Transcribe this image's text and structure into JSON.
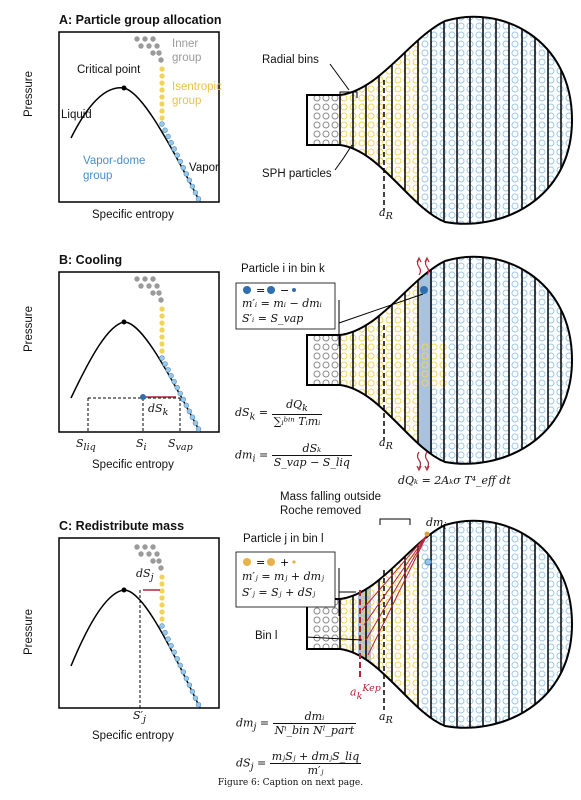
{
  "panels": {
    "a": {
      "title": "A: Particle group allocation",
      "ylabel": "Pressure",
      "xlabel": "Specific entropy",
      "critical_point": "Critical point",
      "liquid": "Liquid",
      "inner_group": [
        "Inner",
        "group"
      ],
      "isentropic_group": [
        "Isentropic",
        "group"
      ],
      "vapordome_group": [
        "Vapor-dome",
        "group"
      ],
      "vapor": "Vapor",
      "radial_bins": "Radial bins",
      "sph_particles": "SPH particles",
      "a_r": "a",
      "a_r_sub": "R"
    },
    "b": {
      "title": "B: Cooling",
      "ylabel": "Pressure",
      "xlabel": "Specific entropy",
      "dSk": "dS",
      "dSk_sub": "k",
      "s_liq": "S",
      "s_liq_sub": "liq",
      "s_i": "S",
      "s_i_sub": "i",
      "s_vap": "S",
      "s_vap_sub": "vap",
      "box_title": "Particle i in bin k",
      "eq1": "m′ᵢ = mᵢ − dmᵢ",
      "eq2": "S′ᵢ = S_vap",
      "dSk_lhs": "dS",
      "dSk_lhs_sub": "k",
      "dSk_num": "dQ",
      "dSk_num_sub": "k",
      "dSk_den": "∑ᵢᵇⁱⁿ Tᵢmᵢ",
      "dmi_lhs": "dm",
      "dmi_lhs_sub": "i",
      "dmi_num": "dSₖ",
      "dmi_den": "S_vap − S_liq",
      "a_r": "a",
      "a_r_sub": "R",
      "dQk": "dQₖ = 2Aₖσ T⁴_eff dt"
    },
    "c": {
      "title": "C: Redistribute mass",
      "ylabel": "Pressure",
      "xlabel": "Specific entropy",
      "dSj": "dS",
      "dSj_sub": "j",
      "sj_prime": "S′",
      "sj_prime_sub": "j",
      "mass_falling": [
        "Mass falling outside",
        "Roche removed"
      ],
      "dmi": "dm",
      "dmi_sub": "i",
      "box_title": "Particle j in bin l",
      "eq1": "m′ⱼ = mⱼ + dmⱼ",
      "eq2": "S′ⱼ = Sⱼ + dSⱼ",
      "bin_l": "Bin l",
      "a_kep": "a",
      "a_kep_sub": "k",
      "a_kep_sup": "Kep",
      "a_r": "a",
      "a_r_sub": "R",
      "dmj_lhs": "dm",
      "dmj_lhs_sub": "j",
      "dmj_num": "dmᵢ",
      "dmj_den": "Nⁱ_bin Nˡ_part",
      "dSj_lhs": "dS",
      "dSj_lhs_sub": "j",
      "dSj_num": "mⱼSⱼ + dmⱼS_liq",
      "dSj_den": "m′ⱼ"
    }
  },
  "caption": "Figure 6: Caption on next page.",
  "colors": {
    "grey": "#9a9a9a",
    "yellow": "#f2d35a",
    "blue": "#4a8fc6",
    "lightblue": "#9cc7e6",
    "red": "#b3263a",
    "shade": "#9fb6d6"
  }
}
